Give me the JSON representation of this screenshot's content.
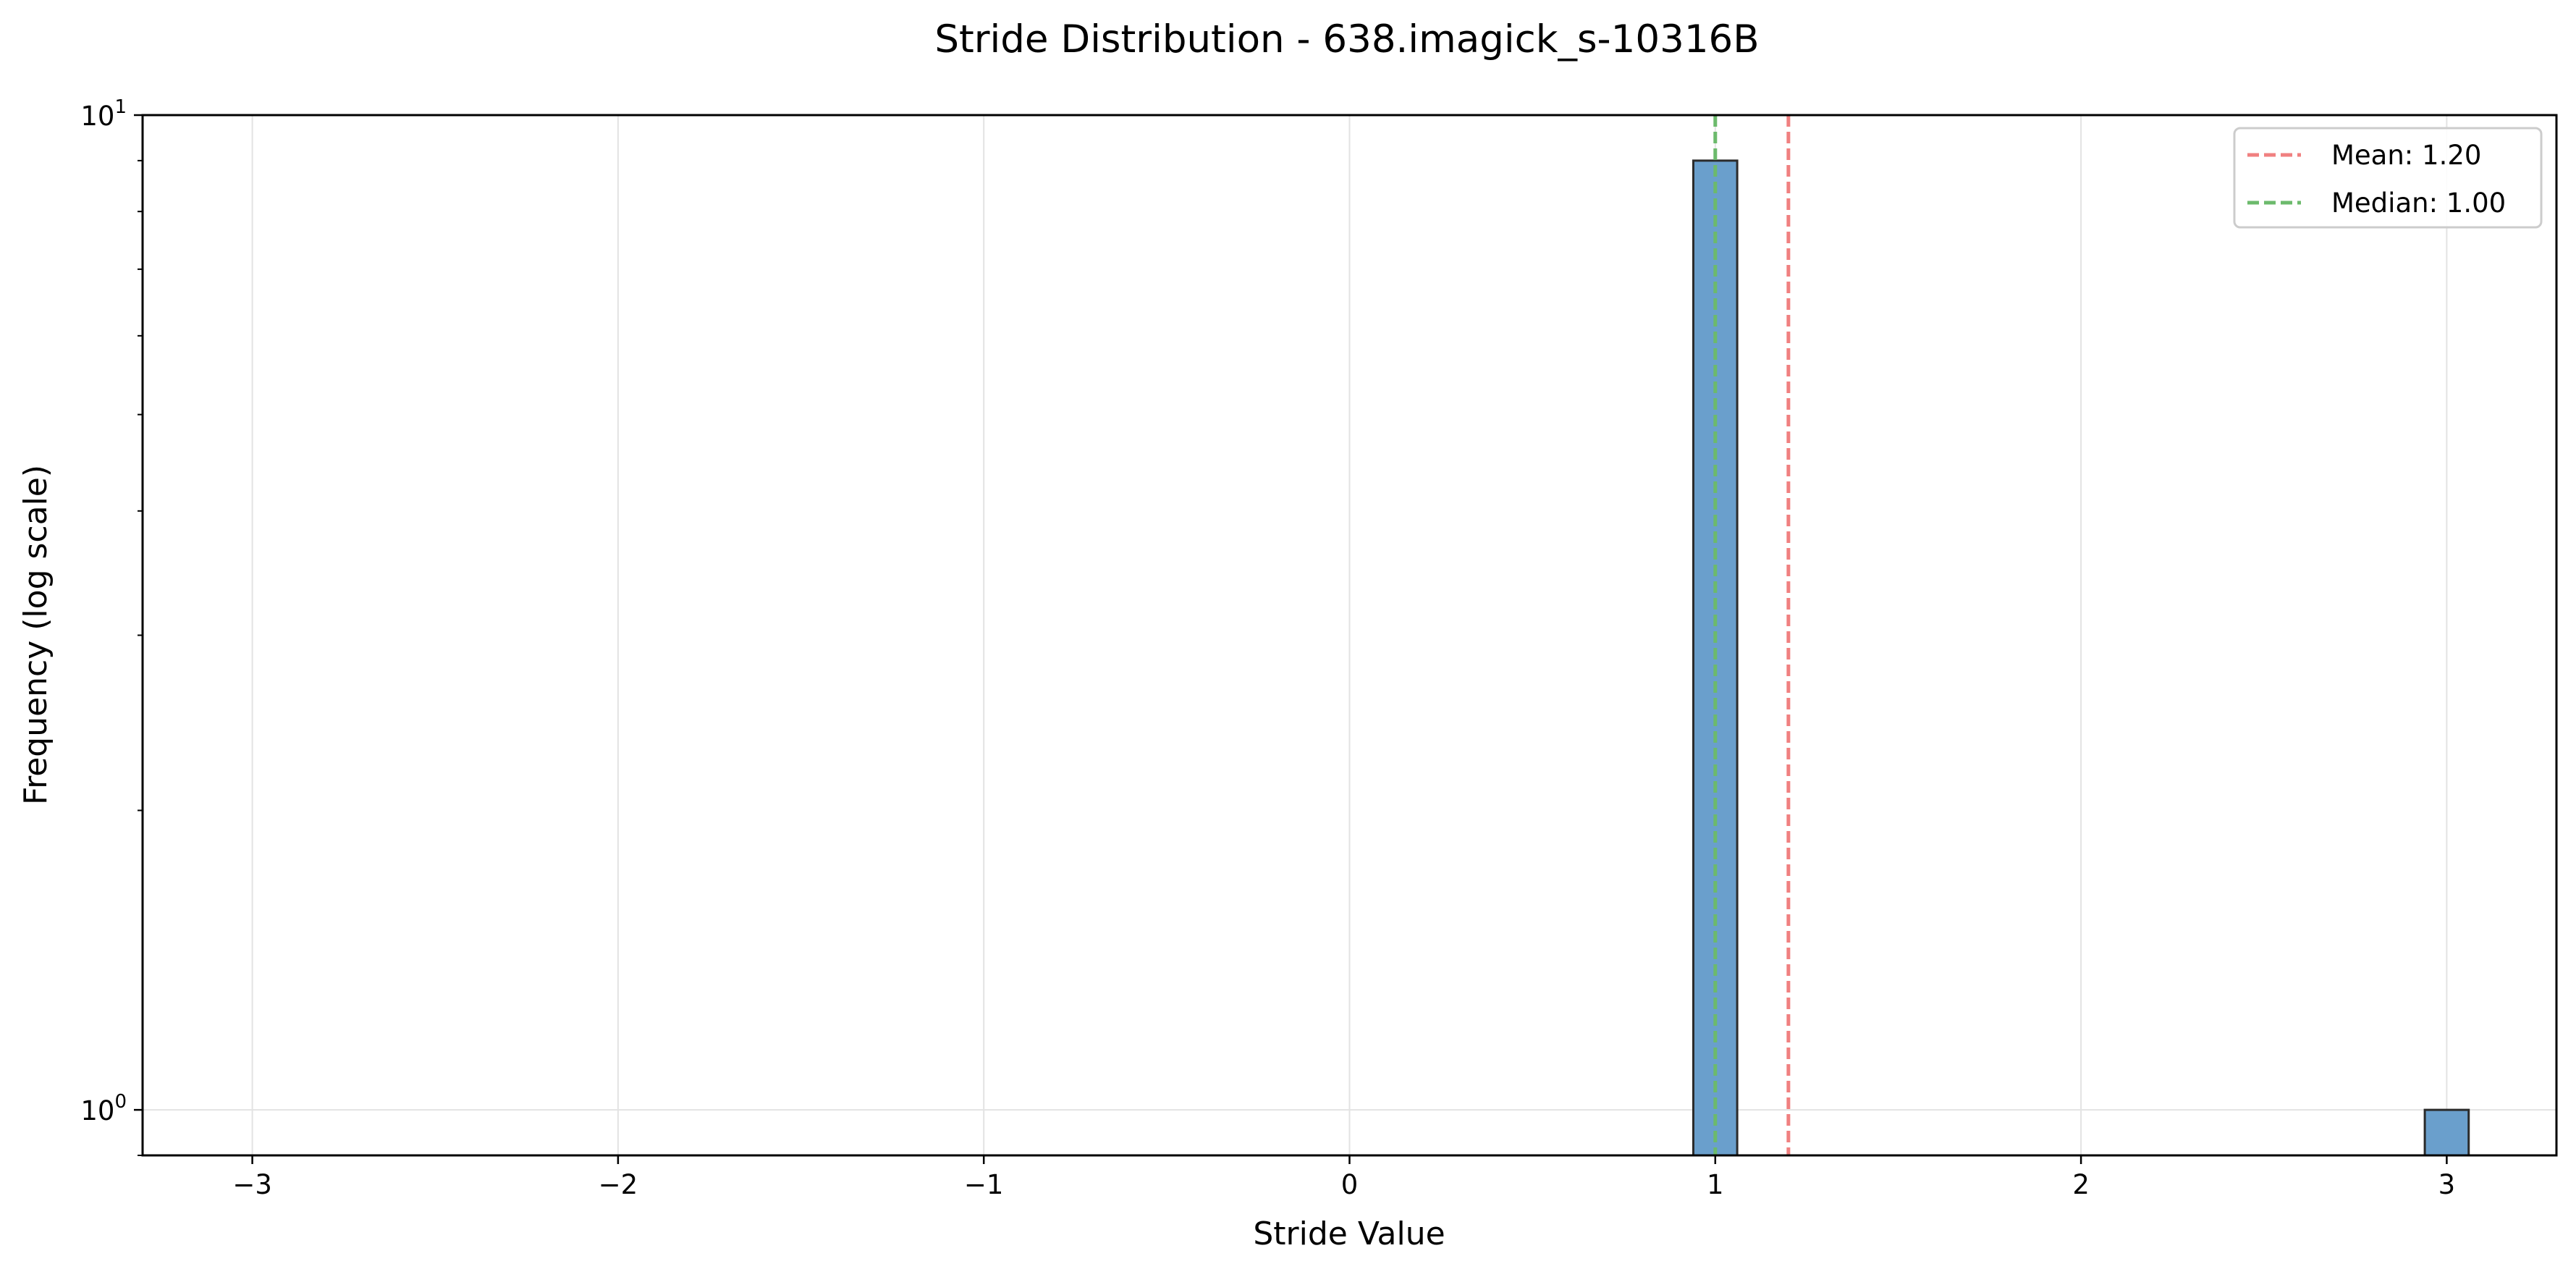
{
  "chart_data": {
    "type": "bar",
    "title": "Stride Distribution - 638.imagick_s-10316B",
    "xlabel": "Stride Value",
    "ylabel": "Frequency (log scale)",
    "y_scale": "log",
    "xlim": [
      -3.3,
      3.3
    ],
    "ylim": [
      0.9,
      10
    ],
    "x_ticks": [
      -3,
      -2,
      -1,
      0,
      1,
      2,
      3
    ],
    "x_tick_labels": [
      "−3",
      "−2",
      "−1",
      "0",
      "1",
      "2",
      "3"
    ],
    "y_ticks": [
      {
        "value": 1,
        "base": "10",
        "exp": "0"
      },
      {
        "value": 10,
        "base": "10",
        "exp": "1"
      }
    ],
    "bars": [
      {
        "x": 1,
        "width": 0.12,
        "value": 9
      },
      {
        "x": 3,
        "width": 0.12,
        "value": 1
      }
    ],
    "bar_color": "#6a9fcc",
    "bar_edge_color": "#2b2b2b",
    "reference_lines": [
      {
        "name": "Mean",
        "label": "Mean: 1.20",
        "x": 1.2,
        "color": "#f08080"
      },
      {
        "name": "Median",
        "label": "Median: 1.00",
        "x": 1.0,
        "color": "#6cba6c"
      }
    ],
    "grid": true,
    "legend_position": "top-right"
  }
}
